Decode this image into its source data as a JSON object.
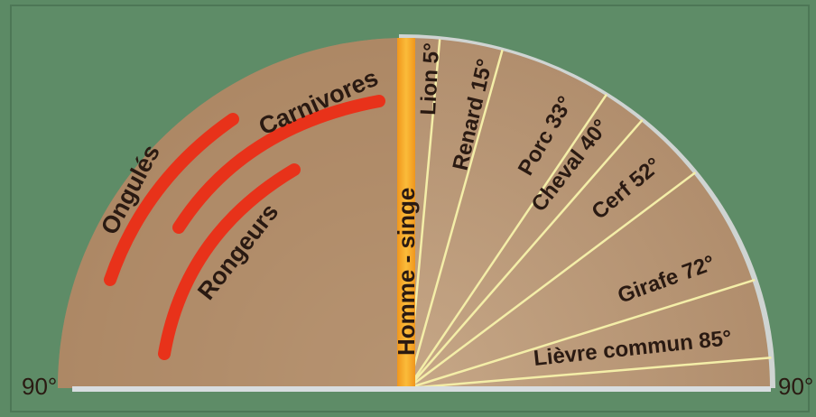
{
  "diagram": {
    "left_edge_label": "90°",
    "right_edge_label": "90°",
    "vertical_label": "Homme - singe",
    "group_arcs": [
      {
        "id": "ongules",
        "label": "Ongulés"
      },
      {
        "id": "carnivores",
        "label": "Carnivores"
      },
      {
        "id": "rongeurs",
        "label": "Rongeurs"
      }
    ],
    "rays": [
      {
        "id": "lion",
        "label": "Lion 5°",
        "angle_deg": 5
      },
      {
        "id": "renard",
        "label": "Renard 15°",
        "angle_deg": 15
      },
      {
        "id": "porc",
        "label": "Porc 33°",
        "angle_deg": 33
      },
      {
        "id": "cheval",
        "label": "Cheval 40°",
        "angle_deg": 40
      },
      {
        "id": "cerf",
        "label": "Cerf 52°",
        "angle_deg": 52
      },
      {
        "id": "girafe",
        "label": "Girafe 72°",
        "angle_deg": 72
      },
      {
        "id": "lievre",
        "label": "Lièvre commun 85°",
        "angle_deg": 85
      }
    ],
    "colors": {
      "background": "#5c8a65",
      "semicircle": "#b9987a",
      "semicircle_light": "#d4b89a",
      "left_shade": "#a4805d",
      "ray_line": "#f4eea8",
      "center_band": "#f5a623",
      "arc_red": "#e8321a",
      "baseline": "#d8dde0",
      "text": "#2a1a12"
    }
  }
}
